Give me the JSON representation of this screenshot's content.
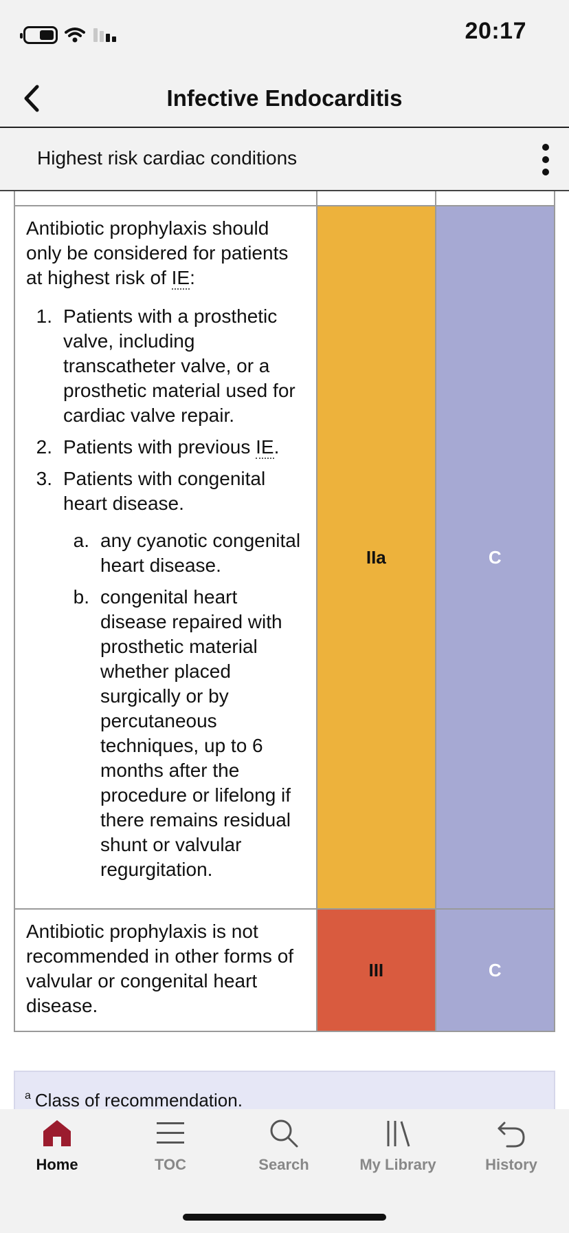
{
  "status_bar": {
    "time": "20:17"
  },
  "header": {
    "title": "Infective Endocarditis",
    "back_icon": "chevron-left-icon"
  },
  "section": {
    "title": "Highest risk cardiac conditions",
    "menu_icon": "more-vertical-icon"
  },
  "table": {
    "rows": [
      {
        "intro_before": "Antibiotic prophylaxis should only be considered for patients at highest risk of ",
        "intro_abbr": "IE",
        "intro_after": ":",
        "items": [
          {
            "number": "1.",
            "text": "Patients with a prosthetic valve, including transcatheter valve, or a prosthetic material used for cardiac valve repair."
          },
          {
            "number": "2.",
            "text_before": "Patients with previous ",
            "abbr": "IE",
            "text_after": "."
          },
          {
            "number": "3.",
            "text": "Patients with congenital heart disease.",
            "sub_items": [
              {
                "letter": "a.",
                "text": "any cyanotic congenital heart disease."
              },
              {
                "letter": "b.",
                "text": "congenital heart disease repaired with prosthetic material whether placed surgically or by percutaneous techniques, up to 6 months after the procedure or lifelong if there remains residual shunt or valvular regurgitation."
              }
            ]
          }
        ],
        "class": "IIa",
        "class_color": "#edb23c",
        "level": "C",
        "level_color": "#a6a9d3"
      },
      {
        "text": "Antibiotic prophylaxis is not recommended in other forms of valvular or congenital heart disease.",
        "class": "III",
        "class_color": "#d95b3f",
        "level": "C",
        "level_color": "#a6a9d3"
      }
    ]
  },
  "footnote": {
    "marker": "a",
    "text": "Class of recommendation."
  },
  "tabbar": {
    "items": [
      {
        "label": "Home",
        "icon": "home-icon",
        "active": true
      },
      {
        "label": "TOC",
        "icon": "list-icon"
      },
      {
        "label": "Search",
        "icon": "search-icon"
      },
      {
        "label": "My Library",
        "icon": "library-icon"
      },
      {
        "label": "History",
        "icon": "history-icon"
      }
    ],
    "active_color": "#9b1c2e"
  }
}
